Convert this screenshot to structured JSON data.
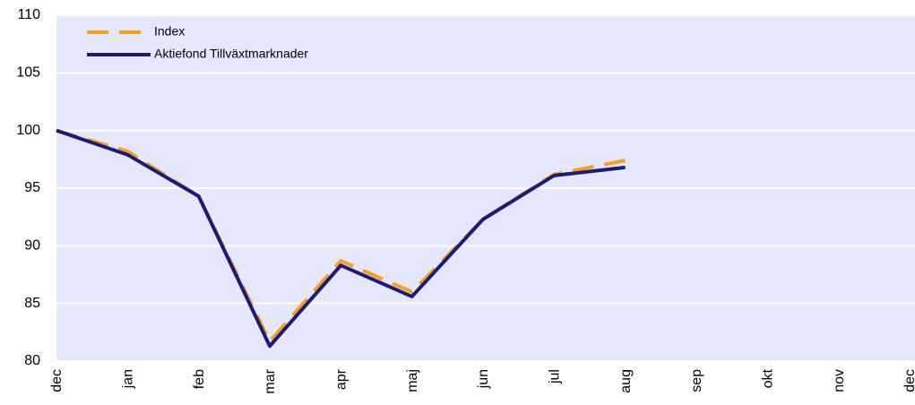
{
  "chart_data": {
    "type": "line",
    "categories": [
      "dec",
      "jan",
      "feb",
      "mar",
      "apr",
      "maj",
      "jun",
      "jul",
      "aug",
      "sep",
      "okt",
      "nov",
      "dec"
    ],
    "series": [
      {
        "name": "Index",
        "color": "#f7a11a",
        "dashed": true,
        "values": [
          100,
          98.2,
          94.3,
          81.7,
          88.7,
          86.0,
          92.3,
          96.2,
          97.4,
          null,
          null,
          null,
          null
        ]
      },
      {
        "name": "Aktiefond Tillväxtmarknader",
        "color": "#1c1a7d",
        "dashed": false,
        "values": [
          100,
          97.9,
          94.3,
          81.3,
          88.3,
          85.6,
          92.3,
          96.1,
          96.8,
          null,
          null,
          null,
          null
        ]
      }
    ],
    "ylim": [
      80,
      110
    ],
    "yticks": [
      80,
      85,
      90,
      95,
      100,
      105,
      110
    ],
    "grid": true,
    "legend": "upper left",
    "background": "#e5e7fa"
  }
}
